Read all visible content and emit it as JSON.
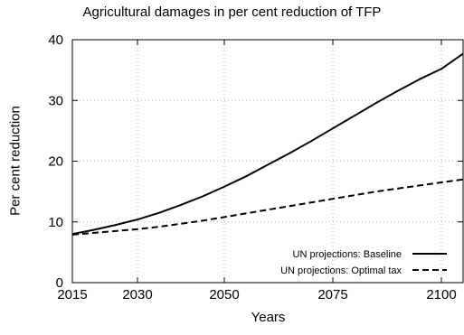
{
  "chart_data": {
    "type": "line",
    "title": "Agricultural damages in per cent reduction of TFP",
    "xlabel": "Years",
    "ylabel": "Per cent reduction",
    "xlim": [
      2015,
      2105
    ],
    "ylim": [
      0,
      40
    ],
    "xticks": [
      2015,
      2030,
      2050,
      2075,
      2100
    ],
    "yticks": [
      0,
      10,
      20,
      30,
      40
    ],
    "grid": true,
    "legend_position": "bottom-right",
    "series": [
      {
        "name": "UN projections: Baseline",
        "style": "solid",
        "color": "#000000",
        "x": [
          2015,
          2020,
          2025,
          2030,
          2035,
          2040,
          2045,
          2050,
          2055,
          2060,
          2065,
          2070,
          2075,
          2080,
          2085,
          2090,
          2095,
          2100,
          2105
        ],
        "y": [
          8.0,
          8.7,
          9.5,
          10.4,
          11.5,
          12.8,
          14.2,
          15.8,
          17.5,
          19.4,
          21.3,
          23.3,
          25.4,
          27.5,
          29.6,
          31.6,
          33.5,
          35.2,
          37.7
        ]
      },
      {
        "name": "UN projections: Optimal tax",
        "style": "dashed",
        "color": "#000000",
        "x": [
          2015,
          2020,
          2025,
          2030,
          2035,
          2040,
          2045,
          2050,
          2055,
          2060,
          2065,
          2070,
          2075,
          2080,
          2085,
          2090,
          2095,
          2100,
          2105
        ],
        "y": [
          7.9,
          8.2,
          8.5,
          8.8,
          9.2,
          9.7,
          10.2,
          10.8,
          11.4,
          12.0,
          12.6,
          13.2,
          13.8,
          14.4,
          15.0,
          15.5,
          16.0,
          16.5,
          17.0
        ]
      }
    ]
  }
}
